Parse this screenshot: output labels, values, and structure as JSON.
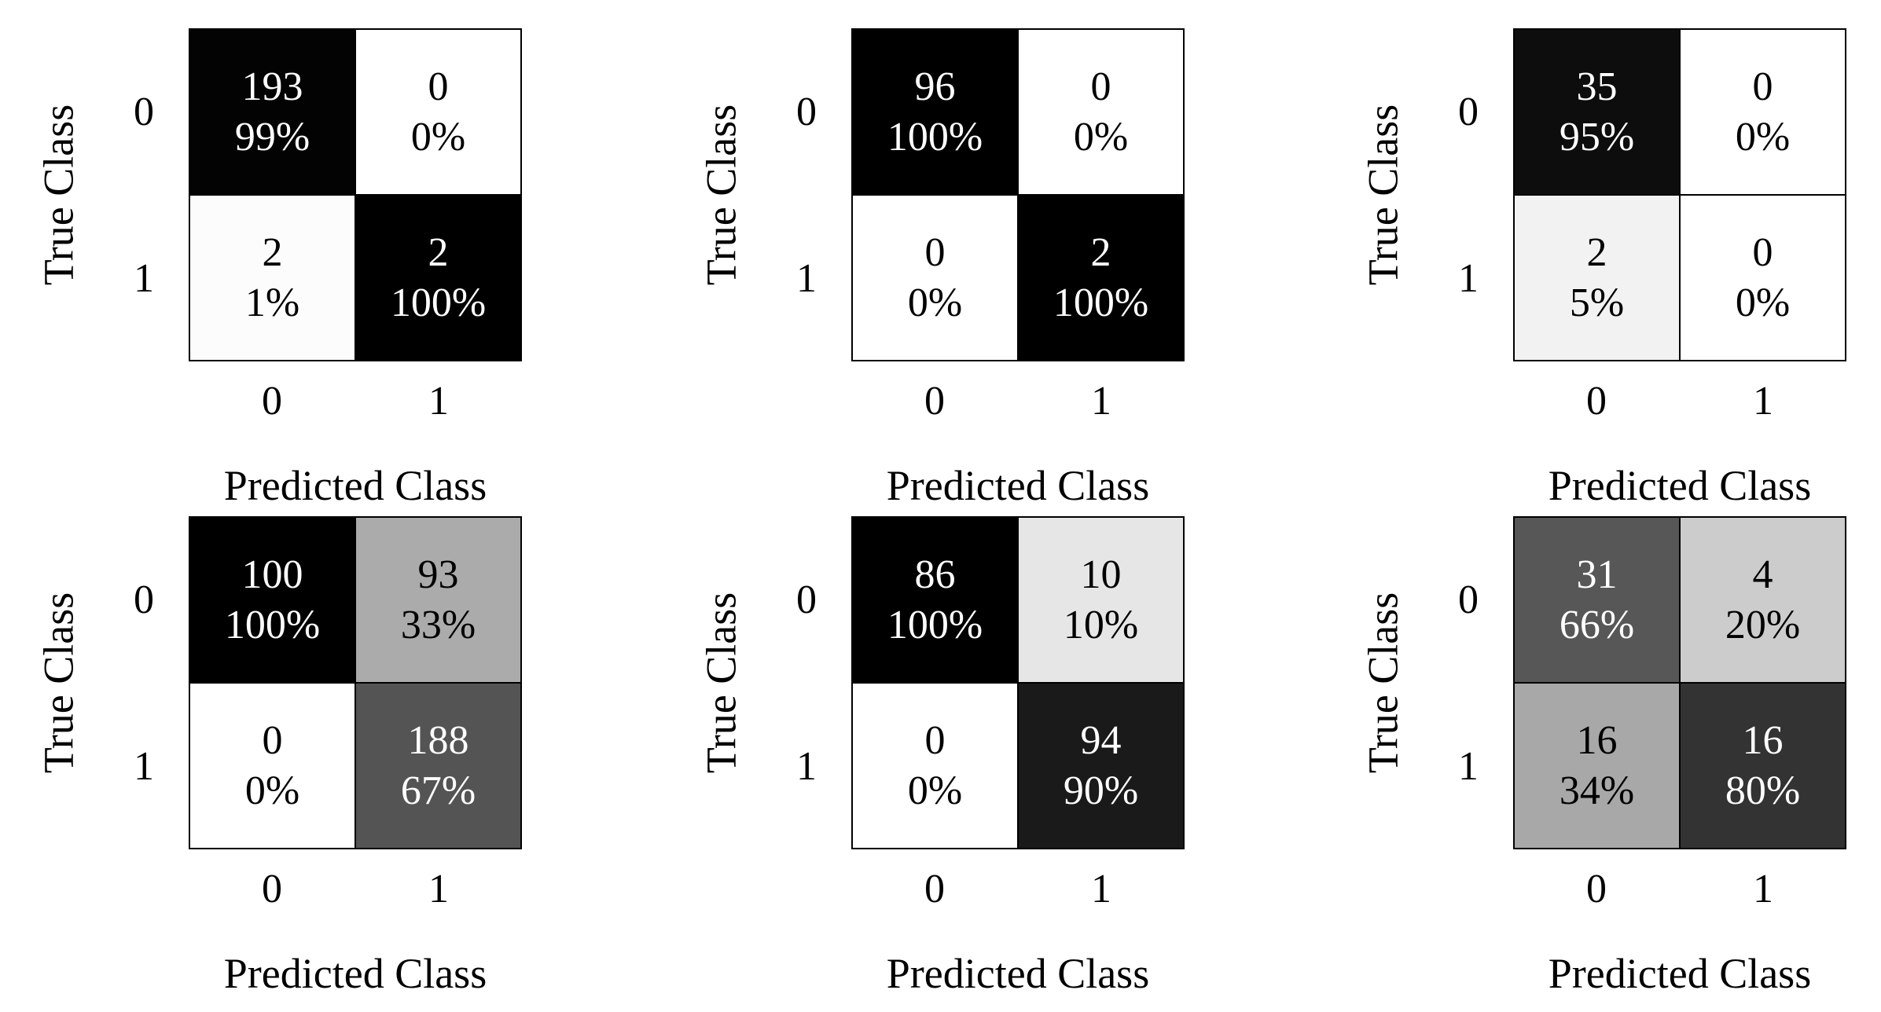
{
  "figure": {
    "layout": "2 rows x 3 columns of confusion matrices",
    "background": "#ffffff",
    "grid_line_color": "#000000",
    "text_color_dark_cells": "#ffffff",
    "text_color_light_cells": "#000000"
  },
  "chart_data": [
    {
      "type": "heatmap",
      "position": "top-left",
      "xlabel": "Predicted Class",
      "ylabel": "True Class",
      "x_ticks": [
        "0",
        "1"
      ],
      "y_ticks": [
        "0",
        "1"
      ],
      "colormap": "grayscale, shade = 1 - percent",
      "rows": [
        [
          {
            "count": "193",
            "percent": "99%",
            "bg": "#030303",
            "fg": "#ffffff"
          },
          {
            "count": "0",
            "percent": "0%",
            "bg": "#ffffff",
            "fg": "#000000"
          }
        ],
        [
          {
            "count": "2",
            "percent": "1%",
            "bg": "#fcfcfc",
            "fg": "#000000"
          },
          {
            "count": "2",
            "percent": "100%",
            "bg": "#000000",
            "fg": "#ffffff"
          }
        ]
      ]
    },
    {
      "type": "heatmap",
      "position": "top-middle",
      "xlabel": "Predicted Class",
      "ylabel": "True Class",
      "x_ticks": [
        "0",
        "1"
      ],
      "y_ticks": [
        "0",
        "1"
      ],
      "colormap": "grayscale, shade = 1 - percent",
      "rows": [
        [
          {
            "count": "96",
            "percent": "100%",
            "bg": "#000000",
            "fg": "#ffffff"
          },
          {
            "count": "0",
            "percent": "0%",
            "bg": "#ffffff",
            "fg": "#000000"
          }
        ],
        [
          {
            "count": "0",
            "percent": "0%",
            "bg": "#ffffff",
            "fg": "#000000"
          },
          {
            "count": "2",
            "percent": "100%",
            "bg": "#000000",
            "fg": "#ffffff"
          }
        ]
      ]
    },
    {
      "type": "heatmap",
      "position": "top-right",
      "xlabel": "Predicted Class",
      "ylabel": "True Class",
      "x_ticks": [
        "0",
        "1"
      ],
      "y_ticks": [
        "0",
        "1"
      ],
      "colormap": "grayscale, shade = 1 - percent",
      "rows": [
        [
          {
            "count": "35",
            "percent": "95%",
            "bg": "#0d0d0d",
            "fg": "#ffffff"
          },
          {
            "count": "0",
            "percent": "0%",
            "bg": "#ffffff",
            "fg": "#000000"
          }
        ],
        [
          {
            "count": "2",
            "percent": "5%",
            "bg": "#f2f2f2",
            "fg": "#000000"
          },
          {
            "count": "0",
            "percent": "0%",
            "bg": "#ffffff",
            "fg": "#000000"
          }
        ]
      ]
    },
    {
      "type": "heatmap",
      "position": "bottom-left",
      "xlabel": "Predicted Class",
      "ylabel": "True Class",
      "x_ticks": [
        "0",
        "1"
      ],
      "y_ticks": [
        "0",
        "1"
      ],
      "colormap": "grayscale, shade = 1 - percent",
      "rows": [
        [
          {
            "count": "100",
            "percent": "100%",
            "bg": "#000000",
            "fg": "#ffffff"
          },
          {
            "count": "93",
            "percent": "33%",
            "bg": "#ababab",
            "fg": "#000000"
          }
        ],
        [
          {
            "count": "0",
            "percent": "0%",
            "bg": "#ffffff",
            "fg": "#000000"
          },
          {
            "count": "188",
            "percent": "67%",
            "bg": "#545454",
            "fg": "#ffffff"
          }
        ]
      ]
    },
    {
      "type": "heatmap",
      "position": "bottom-middle",
      "xlabel": "Predicted Class",
      "ylabel": "True Class",
      "x_ticks": [
        "0",
        "1"
      ],
      "y_ticks": [
        "0",
        "1"
      ],
      "colormap": "grayscale, shade = 1 - percent",
      "rows": [
        [
          {
            "count": "86",
            "percent": "100%",
            "bg": "#000000",
            "fg": "#ffffff"
          },
          {
            "count": "10",
            "percent": "10%",
            "bg": "#e6e6e6",
            "fg": "#000000"
          }
        ],
        [
          {
            "count": "0",
            "percent": "0%",
            "bg": "#ffffff",
            "fg": "#000000"
          },
          {
            "count": "94",
            "percent": "90%",
            "bg": "#1a1a1a",
            "fg": "#ffffff"
          }
        ]
      ]
    },
    {
      "type": "heatmap",
      "position": "bottom-right",
      "xlabel": "Predicted Class",
      "ylabel": "True Class",
      "x_ticks": [
        "0",
        "1"
      ],
      "y_ticks": [
        "0",
        "1"
      ],
      "colormap": "grayscale, shade = 1 - percent",
      "rows": [
        [
          {
            "count": "31",
            "percent": "66%",
            "bg": "#575757",
            "fg": "#ffffff"
          },
          {
            "count": "4",
            "percent": "20%",
            "bg": "#cccccc",
            "fg": "#000000"
          }
        ],
        [
          {
            "count": "16",
            "percent": "34%",
            "bg": "#a8a8a8",
            "fg": "#000000"
          },
          {
            "count": "16",
            "percent": "80%",
            "bg": "#333333",
            "fg": "#ffffff"
          }
        ]
      ]
    }
  ]
}
